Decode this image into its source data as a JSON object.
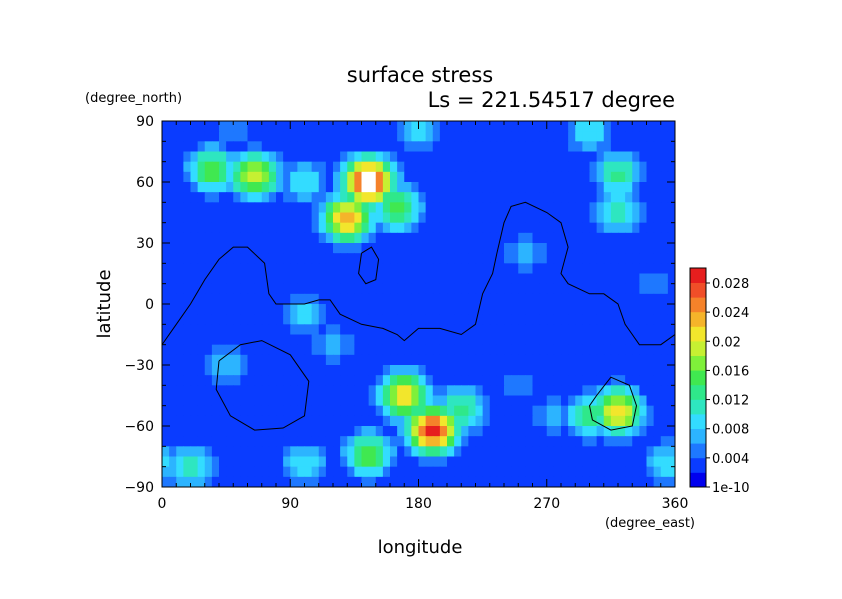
{
  "chart_data": {
    "type": "heatmap",
    "title": "surface stress",
    "subtitle": "Ls = 221.54517 degree",
    "xlabel": "longitude",
    "ylabel": "latitude",
    "x_units": "(degree_east)",
    "y_units": "(degree_north)",
    "xlim": [
      0,
      360
    ],
    "ylim": [
      -90,
      90
    ],
    "x_ticks": [
      "0",
      "90",
      "180",
      "270",
      "360"
    ],
    "y_ticks": [
      "90",
      "60",
      "30",
      "0",
      "−30",
      "−60",
      "−90"
    ],
    "colorbar": {
      "labels": [
        "0.028",
        "0.024",
        "0.02",
        "0.016",
        "0.012",
        "0.008",
        "0.004",
        "1e-10"
      ],
      "min": 1e-10,
      "max": 0.03,
      "colors": [
        "#0000ee",
        "#0a3cff",
        "#1e78ff",
        "#2cb4ff",
        "#33dcff",
        "#2ee6c0",
        "#2fe88a",
        "#40e850",
        "#7ff03a",
        "#c6f032",
        "#f2e62c",
        "#f5b42a",
        "#f5822a",
        "#f04e28",
        "#e61e1e"
      ],
      "above_max_color": "#ffffff"
    },
    "field_background": 0.002,
    "field_features": [
      {
        "lon": 145,
        "lat": 60,
        "value": 0.032
      },
      {
        "lon": 130,
        "lat": 42,
        "value": 0.024
      },
      {
        "lon": 190,
        "lat": -62,
        "value": 0.03
      },
      {
        "lon": 170,
        "lat": -45,
        "value": 0.022
      },
      {
        "lon": 210,
        "lat": -52,
        "value": 0.014
      },
      {
        "lon": 300,
        "lat": -55,
        "value": 0.014
      },
      {
        "lon": 320,
        "lat": -53,
        "value": 0.022
      },
      {
        "lon": 35,
        "lat": 66,
        "value": 0.016
      },
      {
        "lon": 65,
        "lat": 63,
        "value": 0.02
      },
      {
        "lon": 165,
        "lat": 47,
        "value": 0.016
      },
      {
        "lon": 320,
        "lat": 64,
        "value": 0.013
      },
      {
        "lon": 320,
        "lat": 46,
        "value": 0.012
      },
      {
        "lon": 100,
        "lat": 60,
        "value": 0.01
      },
      {
        "lon": 45,
        "lat": -30,
        "value": 0.008
      },
      {
        "lon": 100,
        "lat": -5,
        "value": 0.009
      },
      {
        "lon": 120,
        "lat": -20,
        "value": 0.007
      },
      {
        "lon": 255,
        "lat": 25,
        "value": 0.007
      },
      {
        "lon": 250,
        "lat": -40,
        "value": 0.006
      },
      {
        "lon": 275,
        "lat": -55,
        "value": 0.007
      },
      {
        "lon": 145,
        "lat": -74,
        "value": 0.016
      },
      {
        "lon": 20,
        "lat": -80,
        "value": 0.011
      },
      {
        "lon": 100,
        "lat": -79,
        "value": 0.01
      },
      {
        "lon": 355,
        "lat": -78,
        "value": 0.01
      },
      {
        "lon": 180,
        "lat": 85,
        "value": 0.009
      },
      {
        "lon": 300,
        "lat": 85,
        "value": 0.01
      },
      {
        "lon": 50,
        "lat": 85,
        "value": 0.006
      },
      {
        "lon": 75,
        "lat": -45,
        "value": 0.004
      },
      {
        "lon": 20,
        "lat": 20,
        "value": 0.004
      },
      {
        "lon": 345,
        "lat": 10,
        "value": 0.005
      }
    ],
    "map_outlines": {
      "continent_1": [
        [
          0,
          -20
        ],
        [
          10,
          -10
        ],
        [
          20,
          0
        ],
        [
          30,
          12
        ],
        [
          40,
          22
        ],
        [
          50,
          28
        ],
        [
          60,
          28
        ],
        [
          72,
          20
        ],
        [
          75,
          5
        ],
        [
          80,
          0
        ],
        [
          90,
          0
        ],
        [
          100,
          0
        ],
        [
          110,
          2
        ],
        [
          118,
          2
        ],
        [
          125,
          -5
        ],
        [
          140,
          -10
        ],
        [
          155,
          -12
        ],
        [
          165,
          -15
        ],
        [
          170,
          -18
        ],
        [
          180,
          -12
        ],
        [
          195,
          -12
        ],
        [
          210,
          -15
        ],
        [
          220,
          -10
        ],
        [
          225,
          5
        ],
        [
          232,
          15
        ],
        [
          235,
          25
        ],
        [
          240,
          40
        ],
        [
          245,
          48
        ],
        [
          255,
          50
        ],
        [
          270,
          45
        ],
        [
          280,
          40
        ],
        [
          285,
          28
        ],
        [
          280,
          15
        ],
        [
          285,
          10
        ],
        [
          300,
          5
        ],
        [
          310,
          5
        ],
        [
          320,
          0
        ],
        [
          325,
          -10
        ],
        [
          330,
          -15
        ],
        [
          335,
          -20
        ],
        [
          340,
          -20
        ],
        [
          350,
          -20
        ],
        [
          360,
          -15
        ]
      ],
      "island": [
        [
          140,
          25
        ],
        [
          147,
          28
        ],
        [
          152,
          22
        ],
        [
          150,
          12
        ],
        [
          143,
          10
        ],
        [
          138,
          15
        ],
        [
          140,
          25
        ]
      ],
      "basin_west": [
        [
          40,
          -28
        ],
        [
          55,
          -20
        ],
        [
          70,
          -18
        ],
        [
          90,
          -25
        ],
        [
          103,
          -38
        ],
        [
          100,
          -55
        ],
        [
          85,
          -61
        ],
        [
          65,
          -62
        ],
        [
          48,
          -55
        ],
        [
          38,
          -42
        ],
        [
          40,
          -28
        ]
      ],
      "basin_east": [
        [
          305,
          -45
        ],
        [
          315,
          -36
        ],
        [
          328,
          -40
        ],
        [
          333,
          -50
        ],
        [
          330,
          -60
        ],
        [
          315,
          -62
        ],
        [
          302,
          -57
        ],
        [
          300,
          -50
        ],
        [
          305,
          -45
        ]
      ]
    }
  }
}
